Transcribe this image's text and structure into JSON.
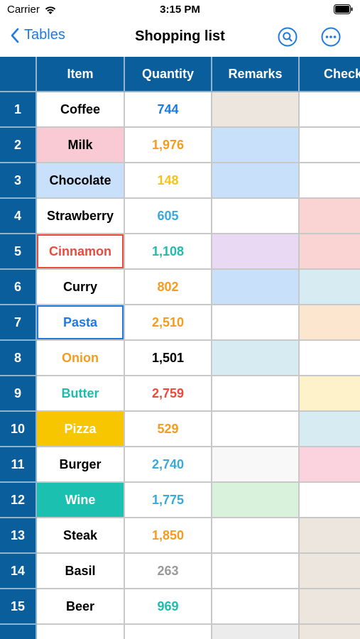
{
  "status_bar": {
    "carrier": "Carrier",
    "time": "3:15 PM"
  },
  "nav": {
    "back_label": "Tables",
    "title": "Shopping list"
  },
  "columns": [
    "Item",
    "Quantity",
    "Remarks",
    "Check"
  ],
  "colors": {
    "header_bg": "#0b5e9c",
    "accent": "#1f7ae0"
  },
  "rows": [
    {
      "num": "1",
      "item": "Coffee",
      "item_color": "#000000",
      "item_bg": "#ffffff",
      "qty": "744",
      "qty_color": "#1f7ae0",
      "remarks_bg": "#ece6df",
      "check_bg": "#ffffff"
    },
    {
      "num": "2",
      "item": "Milk",
      "item_color": "#000000",
      "item_bg": "#f9c9d4",
      "qty": "1,976",
      "qty_color": "#f39c1f",
      "remarks_bg": "#c9e0fa",
      "check_bg": "#ffffff"
    },
    {
      "num": "3",
      "item": "Chocolate",
      "item_color": "#000000",
      "item_bg": "#c9e0fa",
      "qty": "148",
      "qty_color": "#f2c41d",
      "remarks_bg": "#c9e0fa",
      "check_bg": "#ffffff"
    },
    {
      "num": "4",
      "item": "Strawberry",
      "item_color": "#000000",
      "item_bg": "#ffffff",
      "qty": "605",
      "qty_color": "#3aa8d8",
      "remarks_bg": "#ffffff",
      "check_bg": "#fad3d3"
    },
    {
      "num": "5",
      "item": "Cinnamon",
      "item_color": "#e94b3c",
      "item_bg": "#ffffff",
      "qty": "1,108",
      "qty_color": "#1fbcae",
      "remarks_bg": "#ead9f3",
      "check_bg": "#fad3d3",
      "selected": "red"
    },
    {
      "num": "6",
      "item": "Curry",
      "item_color": "#000000",
      "item_bg": "#ffffff",
      "qty": "802",
      "qty_color": "#f39c1f",
      "remarks_bg": "#c9e0fa",
      "check_bg": "#d6ecf2"
    },
    {
      "num": "7",
      "item": "Pasta",
      "item_color": "#1f7ae0",
      "item_bg": "#ffffff",
      "qty": "2,510",
      "qty_color": "#f39c1f",
      "remarks_bg": "#ffffff",
      "check_bg": "#fce6cf",
      "selected": "blue"
    },
    {
      "num": "8",
      "item": "Onion",
      "item_color": "#f39c1f",
      "item_bg": "#ffffff",
      "qty": "1,501",
      "qty_color": "#000000",
      "remarks_bg": "#d6ecf2",
      "check_bg": "#ffffff"
    },
    {
      "num": "9",
      "item": "Butter",
      "item_color": "#1fbcae",
      "item_bg": "#ffffff",
      "qty": "2,759",
      "qty_color": "#e94b3c",
      "remarks_bg": "#ffffff",
      "check_bg": "#fdf2c9"
    },
    {
      "num": "10",
      "item": "Pizza",
      "item_color": "#ffffff",
      "item_bg": "#f7c600",
      "qty": "529",
      "qty_color": "#f39c1f",
      "remarks_bg": "#ffffff",
      "check_bg": "#d6ecf2"
    },
    {
      "num": "11",
      "item": "Burger",
      "item_color": "#000000",
      "item_bg": "#ffffff",
      "qty": "2,740",
      "qty_color": "#3aa8d8",
      "remarks_bg": "#f8f8f8",
      "check_bg": "#fad3de"
    },
    {
      "num": "12",
      "item": "Wine",
      "item_color": "#ffffff",
      "item_bg": "#1cc0b0",
      "qty": "1,775",
      "qty_color": "#3aa8d8",
      "remarks_bg": "#d9f2dc",
      "check_bg": "#ffffff"
    },
    {
      "num": "13",
      "item": "Steak",
      "item_color": "#000000",
      "item_bg": "#ffffff",
      "qty": "1,850",
      "qty_color": "#f39c1f",
      "remarks_bg": "#ffffff",
      "check_bg": "#ece6df"
    },
    {
      "num": "14",
      "item": "Basil",
      "item_color": "#000000",
      "item_bg": "#ffffff",
      "qty": "263",
      "qty_color": "#999999",
      "remarks_bg": "#ffffff",
      "check_bg": "#ece6df"
    },
    {
      "num": "15",
      "item": "Beer",
      "item_color": "#000000",
      "item_bg": "#ffffff",
      "qty": "969",
      "qty_color": "#1fbcae",
      "remarks_bg": "#ffffff",
      "check_bg": "#ece6df"
    },
    {
      "num": "",
      "item": "",
      "item_color": "#000000",
      "item_bg": "#ffffff",
      "qty": "",
      "qty_color": "#000000",
      "remarks_bg": "#ececec",
      "check_bg": "#ece6df"
    }
  ]
}
